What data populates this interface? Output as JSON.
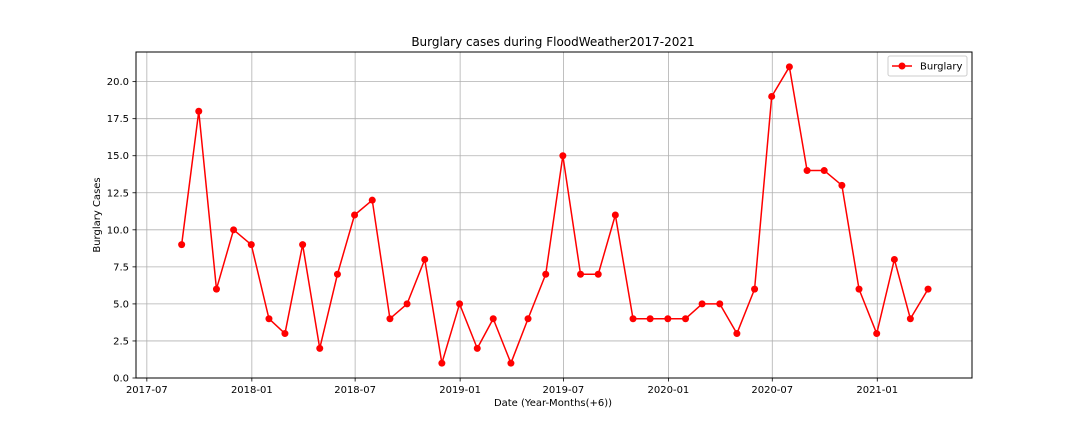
{
  "chart_data": {
    "type": "line",
    "title": "Burglary cases during FloodWeather2017-2021",
    "xlabel": "Date (Year-Months(+6))",
    "ylabel": "Burglary Cases",
    "xlim": [
      "2017-06-12",
      "2021-06-16"
    ],
    "ylim": [
      0,
      22
    ],
    "grid": true,
    "legend_position": "top-right",
    "series_color": "#ff0000",
    "x_ticks": [
      "2017-07-01",
      "2018-01-01",
      "2018-07-01",
      "2019-01-01",
      "2019-07-01",
      "2020-01-01",
      "2020-07-01",
      "2021-01-01"
    ],
    "x_tick_labels": [
      "2017-07",
      "2018-01",
      "2018-07",
      "2019-01",
      "2019-07",
      "2020-01",
      "2020-07",
      "2021-01"
    ],
    "y_ticks": [
      0,
      2.5,
      5,
      7.5,
      10,
      12.5,
      15,
      17.5,
      20
    ],
    "y_tick_labels": [
      "0.0",
      "2.5",
      "5.0",
      "7.5",
      "10.0",
      "12.5",
      "15.0",
      "17.5",
      "20.0"
    ],
    "x": [
      "2017-08-31",
      "2017-09-30",
      "2017-10-31",
      "2017-11-30",
      "2017-12-31",
      "2018-01-31",
      "2018-02-28",
      "2018-03-31",
      "2018-04-30",
      "2018-05-31",
      "2018-06-30",
      "2018-07-31",
      "2018-08-31",
      "2018-09-30",
      "2018-10-31",
      "2018-11-30",
      "2018-12-31",
      "2019-01-31",
      "2019-02-28",
      "2019-03-31",
      "2019-04-30",
      "2019-05-31",
      "2019-06-30",
      "2019-07-31",
      "2019-08-31",
      "2019-09-30",
      "2019-10-31",
      "2019-11-30",
      "2019-12-31",
      "2020-01-31",
      "2020-02-29",
      "2020-03-31",
      "2020-04-30",
      "2020-05-31",
      "2020-06-30",
      "2020-07-31",
      "2020-08-31",
      "2020-09-30",
      "2020-10-31",
      "2020-11-30",
      "2020-12-31",
      "2021-01-31",
      "2021-02-28",
      "2021-03-31"
    ],
    "series": [
      {
        "name": "Burglary",
        "values": [
          9,
          18,
          6,
          10,
          9,
          4,
          3,
          9,
          2,
          7,
          11,
          12,
          4,
          5,
          8,
          1,
          5,
          2,
          4,
          1,
          4,
          7,
          15,
          7,
          7,
          11,
          4,
          4,
          4,
          4,
          5,
          5,
          3,
          6,
          19,
          21,
          14,
          14,
          13,
          6,
          3,
          8,
          4,
          6
        ]
      }
    ]
  }
}
